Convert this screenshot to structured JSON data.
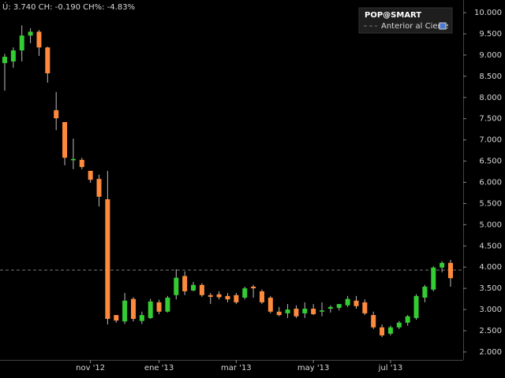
{
  "chart_data": {
    "type": "candlestick",
    "subtitle": "Ú: 3.740 CH: -0.190 CH%: -4.83%",
    "categories": [
      null,
      null,
      null,
      null,
      null,
      null,
      null,
      null,
      null,
      null,
      "nov '12",
      null,
      null,
      null,
      null,
      null,
      null,
      null,
      "ene '13",
      null,
      null,
      null,
      null,
      null,
      null,
      null,
      null,
      "mar '13",
      null,
      null,
      null,
      null,
      null,
      null,
      null,
      null,
      "may '13",
      null,
      null,
      null,
      null,
      null,
      null,
      null,
      null,
      "jul '13",
      null,
      null,
      null,
      null,
      null,
      null,
      null
    ],
    "series": [
      {
        "name": "POP@SMART",
        "open": [
          8.81,
          8.85,
          9.11,
          9.46,
          9.55,
          9.18,
          7.7,
          7.42,
          6.52,
          6.53,
          6.27,
          6.08,
          5.6,
          2.87,
          2.72,
          3.25,
          2.73,
          2.8,
          3.17,
          2.95,
          3.34,
          3.79,
          3.45,
          3.58,
          3.34,
          3.36,
          3.32,
          3.34,
          3.28,
          3.54,
          3.43,
          3.28,
          2.95,
          2.91,
          3.02,
          2.91,
          3.02,
          2.95,
          3.02,
          3.04,
          3.1,
          3.21,
          3.17,
          2.87,
          2.58,
          2.43,
          2.58,
          2.69,
          2.8,
          3.28,
          3.47,
          3.99,
          4.1
        ],
        "high": [
          9.03,
          9.18,
          9.7,
          9.63,
          9.59,
          9.2,
          8.13,
          7.42,
          7.03,
          6.58,
          6.27,
          6.18,
          6.27,
          2.87,
          3.39,
          3.29,
          2.95,
          3.25,
          3.23,
          3.32,
          3.95,
          3.9,
          3.65,
          3.62,
          3.39,
          3.43,
          3.39,
          3.39,
          3.54,
          3.58,
          3.47,
          3.32,
          3.06,
          3.13,
          3.1,
          3.17,
          3.13,
          3.17,
          3.1,
          3.13,
          3.32,
          3.32,
          3.24,
          2.95,
          2.65,
          2.62,
          2.73,
          2.87,
          3.36,
          3.58,
          4.02,
          4.14,
          4.17
        ],
        "low": [
          8.16,
          8.7,
          8.85,
          9.28,
          8.98,
          8.35,
          7.23,
          6.4,
          6.31,
          6.31,
          5.99,
          5.43,
          2.65,
          2.69,
          2.66,
          2.72,
          2.66,
          2.78,
          2.89,
          2.93,
          3.24,
          3.34,
          3.43,
          3.3,
          3.13,
          3.24,
          3.17,
          3.13,
          3.24,
          3.28,
          3.13,
          2.91,
          2.84,
          2.8,
          2.8,
          2.8,
          2.87,
          2.84,
          2.93,
          2.98,
          3.06,
          3.02,
          2.87,
          2.54,
          2.35,
          2.39,
          2.54,
          2.62,
          2.76,
          3.17,
          3.43,
          3.88,
          3.54
        ],
        "close": [
          8.96,
          9.11,
          9.46,
          9.55,
          9.18,
          8.57,
          7.51,
          6.58,
          6.55,
          6.36,
          6.06,
          5.66,
          2.78,
          2.74,
          3.21,
          2.78,
          2.87,
          3.19,
          2.95,
          3.28,
          3.75,
          3.43,
          3.58,
          3.34,
          3.3,
          3.29,
          3.24,
          3.17,
          3.5,
          3.5,
          3.17,
          2.95,
          2.87,
          3.0,
          2.84,
          3.02,
          2.89,
          2.98,
          3.06,
          3.13,
          3.25,
          3.08,
          2.91,
          2.58,
          2.39,
          2.58,
          2.69,
          2.84,
          3.32,
          3.54,
          3.99,
          4.1,
          3.74
        ]
      }
    ],
    "up_color": "#33cc33",
    "down_color": "#ff8a3d",
    "reference": {
      "name": "Anterior al Cierre",
      "value": 3.93,
      "color": "#777777"
    },
    "ylim": [
      1.85,
      10.15
    ],
    "yticks": [
      {
        "value": 2,
        "label": "2.000"
      },
      {
        "value": 2.5,
        "label": "2.500"
      },
      {
        "value": 3,
        "label": "3.000"
      },
      {
        "value": 3.5,
        "label": "3.500"
      },
      {
        "value": 4,
        "label": "4.000"
      },
      {
        "value": 4.5,
        "label": "4.500"
      },
      {
        "value": 5,
        "label": "5.000"
      },
      {
        "value": 5.5,
        "label": "5.500"
      },
      {
        "value": 6,
        "label": "6.000"
      },
      {
        "value": 6.5,
        "label": "6.500"
      },
      {
        "value": 7,
        "label": "7.000"
      },
      {
        "value": 7.5,
        "label": "7.500"
      },
      {
        "value": 8,
        "label": "8.000"
      },
      {
        "value": 8.5,
        "label": "8.500"
      },
      {
        "value": 9,
        "label": "9.000"
      },
      {
        "value": 9.5,
        "label": "9.500"
      },
      {
        "value": 10,
        "label": "10.000"
      }
    ],
    "grid": false,
    "legend": "top-right"
  }
}
